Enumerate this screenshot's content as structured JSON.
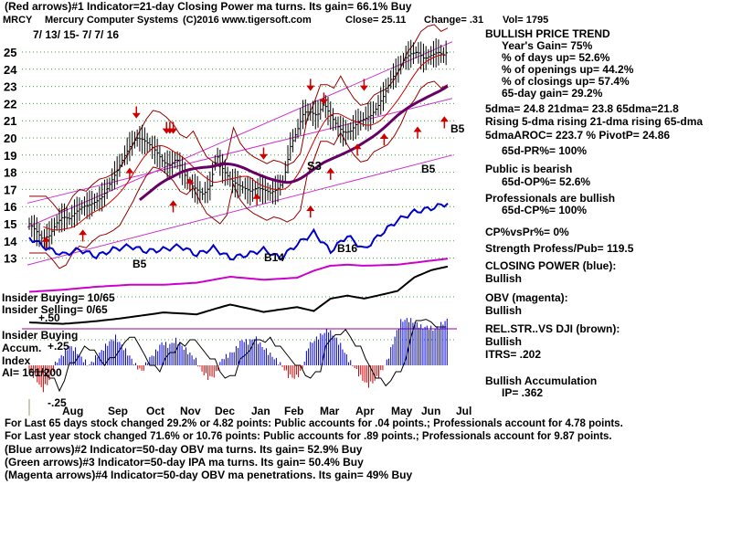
{
  "chart_data": {
    "type": "stock-technical",
    "header": {
      "line1": "(Red arrows)#1 Indicator=21-day Closing Power ma turns. Its gain= 66.1% Buy",
      "symbol": "MRCY",
      "company": "Mercury Computer Systems",
      "copyright": "(C)2016 www.tigersoft.com",
      "close": "Close= 25.11",
      "change": "Change= .31",
      "vol": "Vol= 1795",
      "date_range": "7/ 13/ 15- 7/ 7/ 16"
    },
    "price_axis": {
      "ylim": [
        12,
        26
      ],
      "ticks": [
        13,
        14,
        15,
        16,
        17,
        18,
        19,
        20,
        21,
        22,
        23,
        24,
        25
      ]
    },
    "months": [
      "Aug",
      "Sep",
      "Oct",
      "Nov",
      "Dec",
      "Jan",
      "Feb",
      "Mar",
      "Apr",
      "May",
      "Jun",
      "Jul"
    ],
    "price": {
      "x": [
        0,
        4,
        8,
        12,
        16,
        20,
        24,
        28,
        32,
        36,
        40,
        44,
        48,
        52,
        56,
        60,
        64,
        68,
        72,
        76,
        80,
        84,
        88,
        92,
        96,
        100,
        104,
        108,
        112,
        116,
        120,
        124,
        128,
        132,
        136,
        140,
        144,
        148,
        152,
        156,
        160,
        164,
        168,
        172,
        176,
        180,
        184,
        188,
        192,
        196,
        200,
        204,
        208,
        212,
        216,
        220,
        224,
        228,
        232,
        236,
        240,
        244,
        248,
        250
      ],
      "close": [
        15.0,
        14.6,
        14.1,
        14.3,
        15.0,
        15.4,
        15.3,
        15.7,
        16.0,
        16.1,
        16.3,
        16.6,
        17.3,
        18.0,
        18.8,
        19.5,
        20.0,
        19.9,
        19.6,
        19.2,
        18.6,
        18.4,
        18.8,
        18.0,
        17.3,
        17.0,
        16.7,
        17.2,
        19.0,
        18.1,
        17.6,
        17.3,
        17.1,
        16.9,
        17.1,
        17.0,
        16.8,
        17.0,
        17.5,
        19.5,
        20.4,
        21.5,
        21.5,
        21.3,
        22.0,
        21.3,
        20.7,
        20.3,
        20.4,
        20.9,
        21.1,
        21.3,
        21.8,
        22.5,
        23.4,
        23.9,
        24.6,
        24.9,
        25.0,
        24.6,
        24.8,
        25.0,
        24.8,
        25.11
      ]
    },
    "closing_power": {
      "x": [
        0,
        10,
        20,
        30,
        40,
        50,
        60,
        70,
        80,
        90,
        100,
        110,
        120,
        130,
        140,
        150,
        160,
        170,
        180,
        190,
        200,
        210,
        220,
        230,
        240,
        250
      ],
      "values": [
        14.2,
        13.6,
        13.2,
        13.5,
        13.1,
        13.5,
        13.7,
        13.4,
        13.5,
        13.7,
        13.2,
        13.6,
        13.0,
        13.2,
        13.5,
        13.0,
        13.8,
        14.5,
        13.4,
        14.3,
        13.5,
        14.4,
        15.2,
        15.7,
        15.9,
        16.2
      ]
    },
    "obv": {
      "x": [
        0,
        20,
        40,
        60,
        80,
        100,
        120,
        140,
        150,
        160,
        170,
        180,
        190,
        200,
        220,
        240,
        250
      ],
      "values": [
        0.05,
        0.07,
        0.1,
        0.12,
        0.12,
        0.14,
        0.2,
        0.17,
        0.18,
        0.19,
        0.26,
        0.31,
        0.32,
        0.31,
        0.32,
        0.36,
        0.38
      ]
    },
    "rel_str": {
      "x": [
        0,
        20,
        40,
        60,
        80,
        100,
        120,
        130,
        140,
        150,
        160,
        170,
        180,
        190,
        200,
        210,
        220,
        230,
        240,
        250
      ],
      "values": [
        0.1,
        0.1,
        0.15,
        0.2,
        0.25,
        0.2,
        0.35,
        0.3,
        0.25,
        0.3,
        0.35,
        0.3,
        0.5,
        0.55,
        0.5,
        0.55,
        0.6,
        0.8,
        0.9,
        0.95
      ]
    },
    "accumulation": {
      "values": [
        -0.05,
        -0.1,
        -0.2,
        -0.12,
        0.02,
        0.08,
        0.15,
        0.12,
        0.05,
        0.0,
        0.06,
        0.12,
        0.18,
        0.22,
        0.15,
        0.08,
        0.0,
        -0.05,
        0.05,
        0.1,
        0.18,
        0.15,
        0.2,
        0.15,
        0.1,
        0.05,
        -0.05,
        -0.1,
        -0.08,
        0.05,
        0.08,
        0.12,
        0.2,
        0.18,
        0.22,
        0.15,
        0.1,
        0.05,
        0.0,
        -0.08,
        -0.1,
        -0.05,
        0.15,
        0.2,
        0.24,
        0.28,
        0.22,
        0.15,
        0.05,
        -0.02,
        -0.1,
        -0.16,
        -0.12,
        -0.05,
        0.05,
        0.22,
        0.35,
        0.36,
        0.34,
        0.3,
        0.3,
        0.28,
        0.32,
        0.36
      ]
    },
    "labels_on_chart": {
      "s3": "S3",
      "b5a": "B5",
      "b5b": "B5",
      "b5c": "B5",
      "b14": "B14",
      "b16": "B16",
      "insider_buying": "Insider Buying= 10/65",
      "insider_selling": "Insider Selling= 0/65",
      "plus50": "+.50",
      "insider_buying2": "Insider Buying",
      "accum": "Accum.",
      "plus25": "+.25",
      "index": "Index",
      "ai": "AI= 161/200",
      "minus25": "-.25"
    }
  },
  "right_panel": {
    "trend_title": "BULLISH PRICE TREND",
    "years_gain": "Year's Gain= 75%",
    "days_up": "% of days up= 52.6%",
    "openings_up": "% of openings up= 44.2%",
    "closings_up": "% of closings up= 57.4%",
    "gain65": "65-day gain= 29.2%",
    "dma": "5dma= 24.8 21dma= 23.8 65dma=21.8",
    "rising": "Rising 5-dma rising 21-dma rising 65-dma",
    "aroc": "5dmaAROC= 223.7 % PivotP= 24.86",
    "pr65": "65d-PR%= 100%",
    "public": "Public is bearish",
    "op65": "65d-OP%= 52.6%",
    "professionals": "Professionals are bullish",
    "cp65": "65d-CP%= 100%",
    "cpvspr": "CP%vsPr%= 0%",
    "strength": "Strength Profess/Pub= 119.5",
    "closing_power_label": "CLOSING POWER (blue):",
    "closing_power_val": "Bullish",
    "obv_label": "OBV (magenta):",
    "obv_val": "Bullish",
    "relstr_label": "REL.STR..VS DJI (brown):",
    "relstr_val": "Bullish",
    "itrs": "ITRS= .202",
    "accum_label": "Bullish Accumulation",
    "ip": "IP= .362"
  },
  "bottom": {
    "line1": "For Last 65 days stock changed 29.2% or 4.82 points: Public accounts for .04 points.; Professionals account for 4.78 points.",
    "line2": "For Last year stock changed 71.6% or 10.76 points: Public accounts for .89 points.; Professionals account for 9.87 points.",
    "line3": "(Blue arrows)#2 Indicator=50-day OBV ma turns. Its gain= 52.9% Buy",
    "line4": "(Green arrows)#3 Indicator=50-day IPA ma turns. Its gain= 50.4% Buy",
    "line5": "(Magenta arrows)#4 Indicator=50-day OBV ma penetrations. Its gain= 49% Buy"
  }
}
